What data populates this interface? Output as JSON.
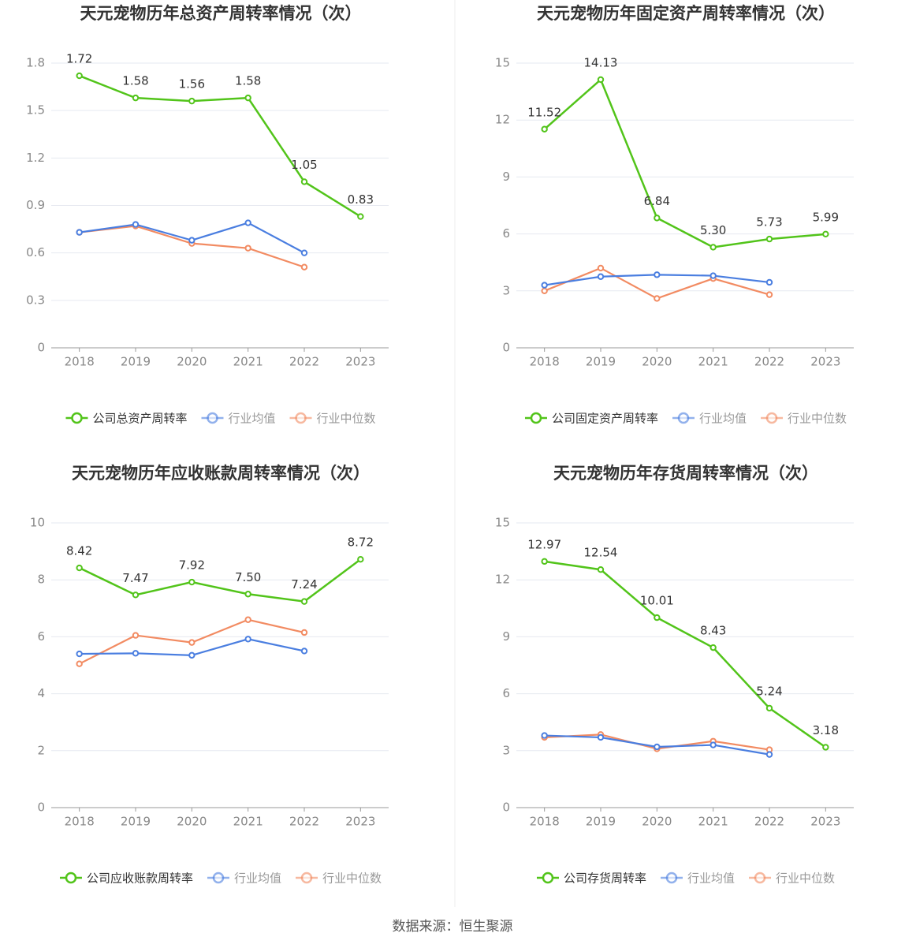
{
  "chart_data": [
    {
      "type": "line",
      "title": "天元宠物历年总资产周转率情况（次）",
      "categories": [
        "2018",
        "2019",
        "2020",
        "2021",
        "2022",
        "2023"
      ],
      "series": [
        {
          "name": "公司总资产周转率",
          "color": "#52c41a",
          "values": [
            1.72,
            1.58,
            1.56,
            1.58,
            1.05,
            0.83
          ],
          "value_labels": [
            "1.72",
            "1.58",
            "1.56",
            "1.58",
            "1.05",
            "0.83"
          ]
        },
        {
          "name": "行业均值",
          "color": "#4a7ee0",
          "values": [
            0.73,
            0.78,
            0.68,
            0.79,
            0.6,
            null
          ]
        },
        {
          "name": "行业中位数",
          "color": "#f28b62",
          "values": [
            0.73,
            0.77,
            0.66,
            0.63,
            0.51,
            null
          ]
        }
      ],
      "ylim": [
        0,
        1.8
      ],
      "yticks": [
        0,
        0.3,
        0.6,
        0.9,
        1.2,
        1.5,
        1.8
      ],
      "grid": true,
      "legend": "bottom"
    },
    {
      "type": "line",
      "title": "天元宠物历年固定资产周转率情况（次）",
      "categories": [
        "2018",
        "2019",
        "2020",
        "2021",
        "2022",
        "2023"
      ],
      "series": [
        {
          "name": "公司固定资产周转率",
          "color": "#52c41a",
          "values": [
            11.52,
            14.13,
            6.84,
            5.3,
            5.73,
            5.99
          ],
          "value_labels": [
            "11.52",
            "14.13",
            "6.84",
            "5.30",
            "5.73",
            "5.99"
          ]
        },
        {
          "name": "行业均值",
          "color": "#4a7ee0",
          "values": [
            3.3,
            3.75,
            3.85,
            3.8,
            3.45,
            null
          ]
        },
        {
          "name": "行业中位数",
          "color": "#f28b62",
          "values": [
            3.0,
            4.2,
            2.6,
            3.65,
            2.8,
            null
          ]
        }
      ],
      "ylim": [
        0,
        15
      ],
      "yticks": [
        0,
        3,
        6,
        9,
        12,
        15
      ],
      "grid": true,
      "legend": "bottom"
    },
    {
      "type": "line",
      "title": "天元宠物历年应收账款周转率情况（次）",
      "categories": [
        "2018",
        "2019",
        "2020",
        "2021",
        "2022",
        "2023"
      ],
      "series": [
        {
          "name": "公司应收账款周转率",
          "color": "#52c41a",
          "values": [
            8.42,
            7.47,
            7.92,
            7.5,
            7.24,
            8.72
          ],
          "value_labels": [
            "8.42",
            "7.47",
            "7.92",
            "7.50",
            "7.24",
            "8.72"
          ]
        },
        {
          "name": "行业均值",
          "color": "#4a7ee0",
          "values": [
            5.4,
            5.42,
            5.35,
            5.92,
            5.5,
            null
          ]
        },
        {
          "name": "行业中位数",
          "color": "#f28b62",
          "values": [
            5.05,
            6.05,
            5.8,
            6.6,
            6.15,
            null
          ]
        }
      ],
      "ylim": [
        0,
        10
      ],
      "yticks": [
        0,
        2,
        4,
        6,
        8,
        10
      ],
      "grid": true,
      "legend": "bottom"
    },
    {
      "type": "line",
      "title": "天元宠物历年存货周转率情况（次）",
      "categories": [
        "2018",
        "2019",
        "2020",
        "2021",
        "2022",
        "2023"
      ],
      "series": [
        {
          "name": "公司存货周转率",
          "color": "#52c41a",
          "values": [
            12.97,
            12.54,
            10.01,
            8.43,
            5.24,
            3.18
          ],
          "value_labels": [
            "12.97",
            "12.54",
            "10.01",
            "8.43",
            "5.24",
            "3.18"
          ]
        },
        {
          "name": "行业均值",
          "color": "#4a7ee0",
          "values": [
            3.8,
            3.7,
            3.2,
            3.3,
            2.8,
            null
          ]
        },
        {
          "name": "行业中位数",
          "color": "#f28b62",
          "values": [
            3.7,
            3.85,
            3.1,
            3.5,
            3.05,
            null
          ]
        }
      ],
      "ylim": [
        0,
        15
      ],
      "yticks": [
        0,
        3,
        6,
        9,
        12,
        15
      ],
      "grid": true,
      "legend": "bottom"
    }
  ],
  "source": "数据来源：恒生聚源"
}
